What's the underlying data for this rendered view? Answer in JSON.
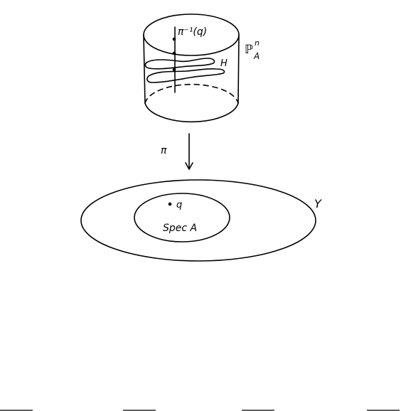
{
  "diagram": {
    "labels": {
      "preimage": "π⁻¹(q)",
      "hypersurface": "H",
      "projective_space_base": "ℙ",
      "projective_space_sup": "n",
      "projective_space_sub": "A",
      "map": "π",
      "point": "q",
      "spec": "Spec A",
      "base_space": "Y"
    }
  }
}
